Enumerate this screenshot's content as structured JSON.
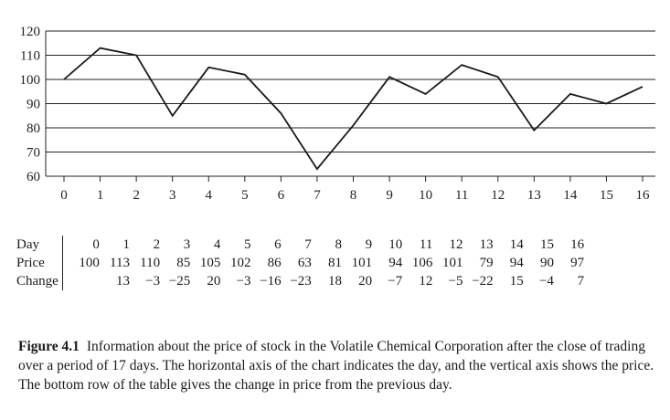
{
  "chart_data": {
    "type": "line",
    "title": "",
    "xlabel": "",
    "ylabel": "",
    "x": [
      0,
      1,
      2,
      3,
      4,
      5,
      6,
      7,
      8,
      9,
      10,
      11,
      12,
      13,
      14,
      15,
      16
    ],
    "series": [
      {
        "values": [
          100,
          113,
          110,
          85,
          105,
          102,
          86,
          63,
          81,
          101,
          94,
          106,
          101,
          79,
          94,
          90,
          97
        ]
      }
    ],
    "xlim": [
      0,
      16
    ],
    "ylim": [
      60,
      120
    ],
    "yticks": [
      60,
      70,
      80,
      90,
      100,
      110,
      120
    ],
    "xticks": [
      0,
      1,
      2,
      3,
      4,
      5,
      6,
      7,
      8,
      9,
      10,
      11,
      12,
      13,
      14,
      15,
      16
    ],
    "grid": "horizontal",
    "line_color": "#1a1a1a"
  },
  "table": {
    "row_labels": [
      "Day",
      "Price",
      "Change"
    ],
    "day": [
      "0",
      "1",
      "2",
      "3",
      "4",
      "5",
      "6",
      "7",
      "8",
      "9",
      "10",
      "11",
      "12",
      "13",
      "14",
      "15",
      "16"
    ],
    "price": [
      "100",
      "113",
      "110",
      "85",
      "105",
      "102",
      "86",
      "63",
      "81",
      "101",
      "94",
      "106",
      "101",
      "79",
      "94",
      "90",
      "97"
    ],
    "change": [
      "",
      "13",
      "−3",
      "−25",
      "20",
      "−3",
      "−16",
      "−23",
      "18",
      "20",
      "−7",
      "12",
      "−5",
      "−22",
      "15",
      "−4",
      "7"
    ]
  },
  "caption": {
    "label": "Figure 4.1",
    "text": "Information about the price of stock in the Volatile Chemical Corporation after the close of trading over a period of 17 days. The horizontal axis of the chart indicates the day, and the vertical axis shows the price. The bottom row of the table gives the change in price from the previous day."
  }
}
